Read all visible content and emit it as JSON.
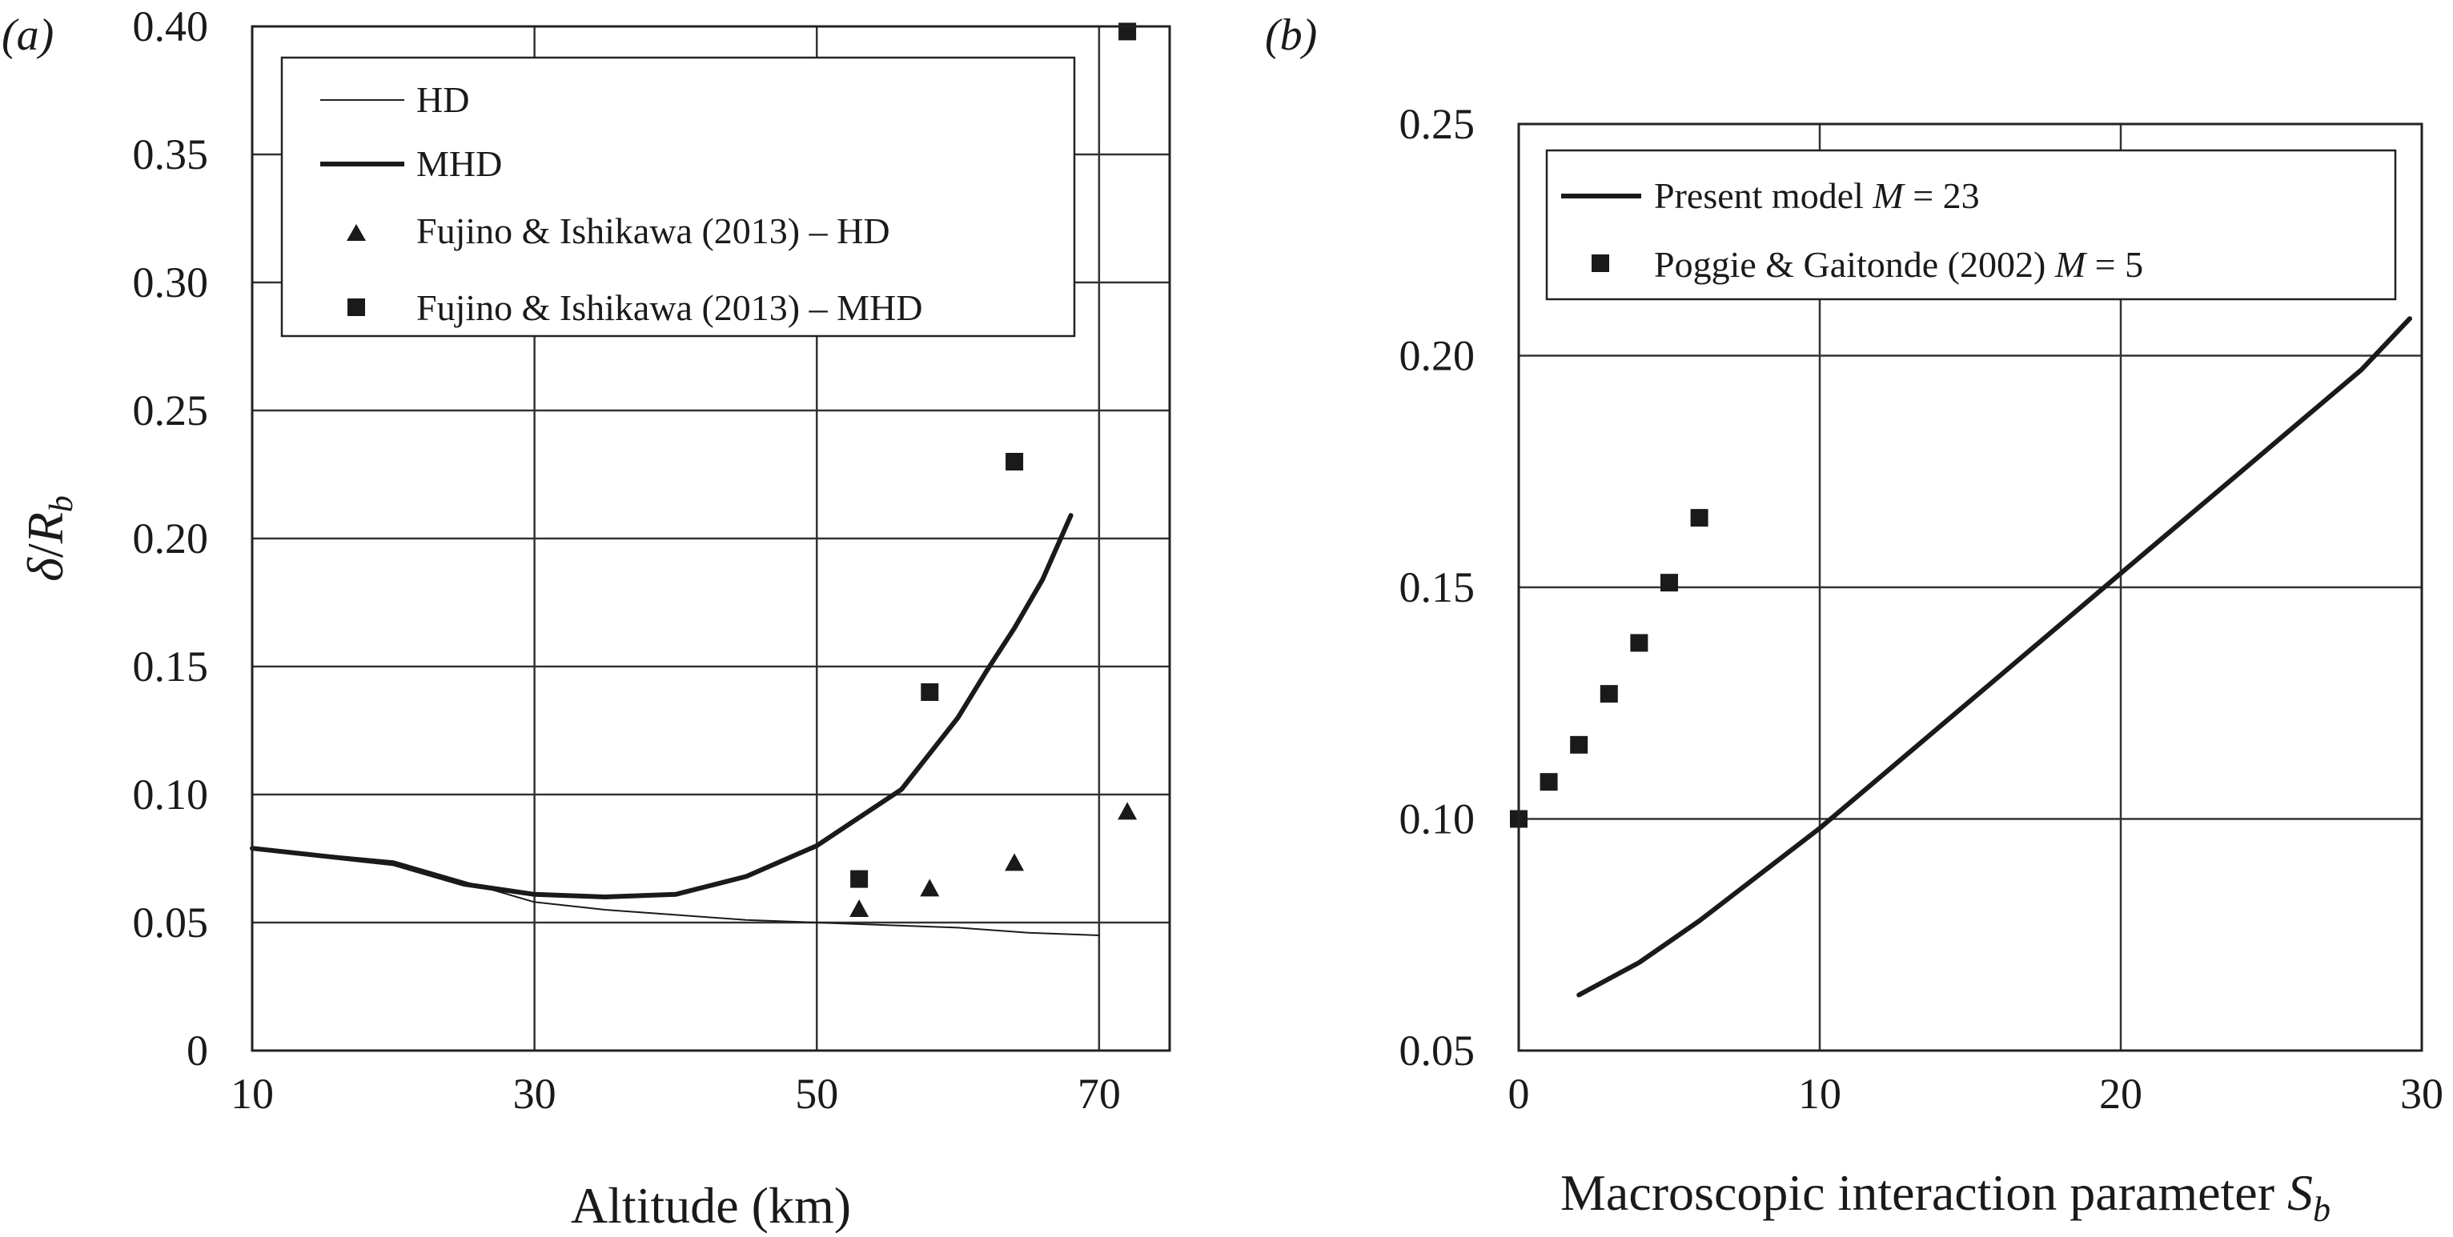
{
  "chart_data": [
    {
      "type": "line",
      "panel_label": "(a)",
      "xlabel": "Altitude (km)",
      "ylabel": "δ/R_b",
      "xlim": [
        10,
        75
      ],
      "ylim": [
        0,
        0.4
      ],
      "xticks": [
        10,
        30,
        50,
        70
      ],
      "xtick_labels": [
        "10",
        "30",
        "50",
        "70"
      ],
      "yticks": [
        0,
        0.05,
        0.1,
        0.15,
        0.2,
        0.25,
        0.3,
        0.35,
        0.4
      ],
      "ytick_labels": [
        "0",
        "0.05",
        "0.10",
        "0.15",
        "0.20",
        "0.25",
        "0.30",
        "0.35",
        "0.40"
      ],
      "grid": true,
      "legend_position": "top-left",
      "series": [
        {
          "name": "HD",
          "kind": "line",
          "style": "thin",
          "x": [
            10,
            20,
            25,
            30,
            35,
            40,
            45,
            50,
            55,
            60,
            65,
            70
          ],
          "y": [
            0.079,
            0.074,
            0.066,
            0.058,
            0.055,
            0.053,
            0.051,
            0.05,
            0.049,
            0.048,
            0.046,
            0.045
          ]
        },
        {
          "name": "MHD",
          "kind": "line",
          "style": "thick",
          "x": [
            10,
            15,
            20,
            25,
            30,
            35,
            40,
            45,
            50,
            53,
            56,
            58,
            60,
            62,
            64,
            66,
            68
          ],
          "y": [
            0.079,
            0.076,
            0.073,
            0.065,
            0.061,
            0.06,
            0.061,
            0.068,
            0.08,
            0.091,
            0.102,
            0.116,
            0.13,
            0.148,
            0.165,
            0.184,
            0.209
          ]
        },
        {
          "name": "Fujino & Ishikawa (2013) – HD",
          "kind": "scatter",
          "marker": "triangle",
          "x": [
            53,
            58,
            64,
            72
          ],
          "y": [
            0.055,
            0.063,
            0.073,
            0.093
          ]
        },
        {
          "name": "Fujino & Ishikawa (2013) – MHD",
          "kind": "scatter",
          "marker": "square",
          "x": [
            53,
            58,
            64,
            72
          ],
          "y": [
            0.067,
            0.14,
            0.23,
            0.398
          ]
        }
      ]
    },
    {
      "type": "line",
      "panel_label": "(b)",
      "xlabel": "Macroscopic interaction parameter S_b",
      "ylabel": "",
      "xlim": [
        0,
        30
      ],
      "ylim": [
        0.05,
        0.25
      ],
      "xticks": [
        0,
        10,
        20,
        30
      ],
      "xtick_labels": [
        "0",
        "10",
        "20",
        "30"
      ],
      "yticks": [
        0.05,
        0.1,
        0.15,
        0.2,
        0.25
      ],
      "ytick_labels": [
        "0.05",
        "0.10",
        "0.15",
        "0.20",
        "0.25"
      ],
      "grid": true,
      "legend_position": "top-left",
      "series": [
        {
          "name": "Present model M = 23",
          "kind": "line",
          "style": "thick",
          "x": [
            2,
            4,
            6,
            8,
            10,
            12,
            14,
            16,
            18,
            20,
            22,
            24,
            26,
            28,
            29.6
          ],
          "y": [
            0.062,
            0.069,
            0.078,
            0.088,
            0.098,
            0.109,
            0.12,
            0.131,
            0.142,
            0.153,
            0.164,
            0.175,
            0.186,
            0.197,
            0.208
          ]
        },
        {
          "name": "Poggie & Gaitonde (2002) M = 5",
          "kind": "scatter",
          "marker": "square",
          "x": [
            0,
            1,
            2,
            3,
            4,
            5,
            6
          ],
          "y": [
            0.1,
            0.108,
            0.116,
            0.127,
            0.138,
            0.151,
            0.165
          ]
        }
      ]
    }
  ]
}
